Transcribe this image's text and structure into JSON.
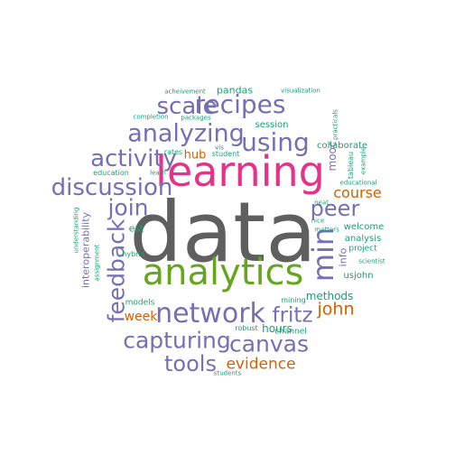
{
  "colors": {
    "gray": "#5f5f5f",
    "pink": "#e6338a",
    "green": "#66a61e",
    "purple": "#7570b3",
    "orange": "#d95f02",
    "teal": "#1b9e77"
  },
  "words": [
    {
      "text": "data",
      "color": "gray"
    },
    {
      "text": "learning",
      "color": "pink"
    },
    {
      "text": "analytics",
      "color": "green"
    },
    {
      "text": "network",
      "color": "purple"
    },
    {
      "text": "using",
      "color": "purple"
    },
    {
      "text": "recipes",
      "color": "purple"
    },
    {
      "text": "scale",
      "color": "purple"
    },
    {
      "text": "analyzing",
      "color": "purple"
    },
    {
      "text": "activity",
      "color": "purple"
    },
    {
      "text": "discussion",
      "color": "purple"
    },
    {
      "text": "join",
      "color": "purple"
    },
    {
      "text": "feedback",
      "color": "purple"
    },
    {
      "text": "peer",
      "color": "purple"
    },
    {
      "text": "min",
      "color": "purple"
    },
    {
      "text": "fritz",
      "color": "purple"
    },
    {
      "text": "capturing",
      "color": "purple"
    },
    {
      "text": "canvas",
      "color": "purple"
    },
    {
      "text": "tools",
      "color": "purple"
    },
    {
      "text": "john",
      "color": "orange"
    },
    {
      "text": "evidence",
      "color": "orange"
    },
    {
      "text": "course",
      "color": "orange"
    },
    {
      "text": "week",
      "color": "orange"
    },
    {
      "text": "hub",
      "color": "orange"
    },
    {
      "text": "mooc",
      "color": "purple"
    },
    {
      "text": "info",
      "color": "purple"
    },
    {
      "text": "interoperability",
      "color": "purple"
    },
    {
      "text": "methods",
      "color": "teal"
    },
    {
      "text": "hours",
      "color": "teal"
    },
    {
      "text": "pandas",
      "color": "teal"
    },
    {
      "text": "session",
      "color": "teal"
    },
    {
      "text": "collaborate",
      "color": "teal"
    },
    {
      "text": "welcome",
      "color": "teal"
    },
    {
      "text": "analysis",
      "color": "teal"
    },
    {
      "text": "project",
      "color": "teal"
    },
    {
      "text": "usjohn",
      "color": "teal"
    },
    {
      "text": "est",
      "color": "teal"
    },
    {
      "text": "hybrid",
      "color": "teal"
    },
    {
      "text": "models",
      "color": "teal"
    },
    {
      "text": "robust",
      "color": "teal"
    },
    {
      "text": "channel",
      "color": "teal"
    },
    {
      "text": "mining",
      "color": "teal"
    },
    {
      "text": "students",
      "color": "teal"
    },
    {
      "text": "student",
      "color": "teal"
    },
    {
      "text": "rates",
      "color": "teal"
    },
    {
      "text": "vis",
      "color": "teal"
    },
    {
      "text": "education",
      "color": "teal"
    },
    {
      "text": "learn",
      "color": "teal"
    },
    {
      "text": "completion",
      "color": "teal"
    },
    {
      "text": "packages",
      "color": "teal"
    },
    {
      "text": "acheivement",
      "color": "teal"
    },
    {
      "text": "visualization",
      "color": "teal"
    },
    {
      "text": "practicals",
      "color": "teal"
    },
    {
      "text": "tableau",
      "color": "teal"
    },
    {
      "text": "educational",
      "color": "teal"
    },
    {
      "text": "example",
      "color": "teal"
    },
    {
      "text": "neat",
      "color": "teal"
    },
    {
      "text": "nice",
      "color": "teal"
    },
    {
      "text": "matters",
      "color": "teal"
    },
    {
      "text": "scientist",
      "color": "teal"
    },
    {
      "text": "understanding",
      "color": "teal"
    },
    {
      "text": "assignment",
      "color": "teal"
    }
  ]
}
